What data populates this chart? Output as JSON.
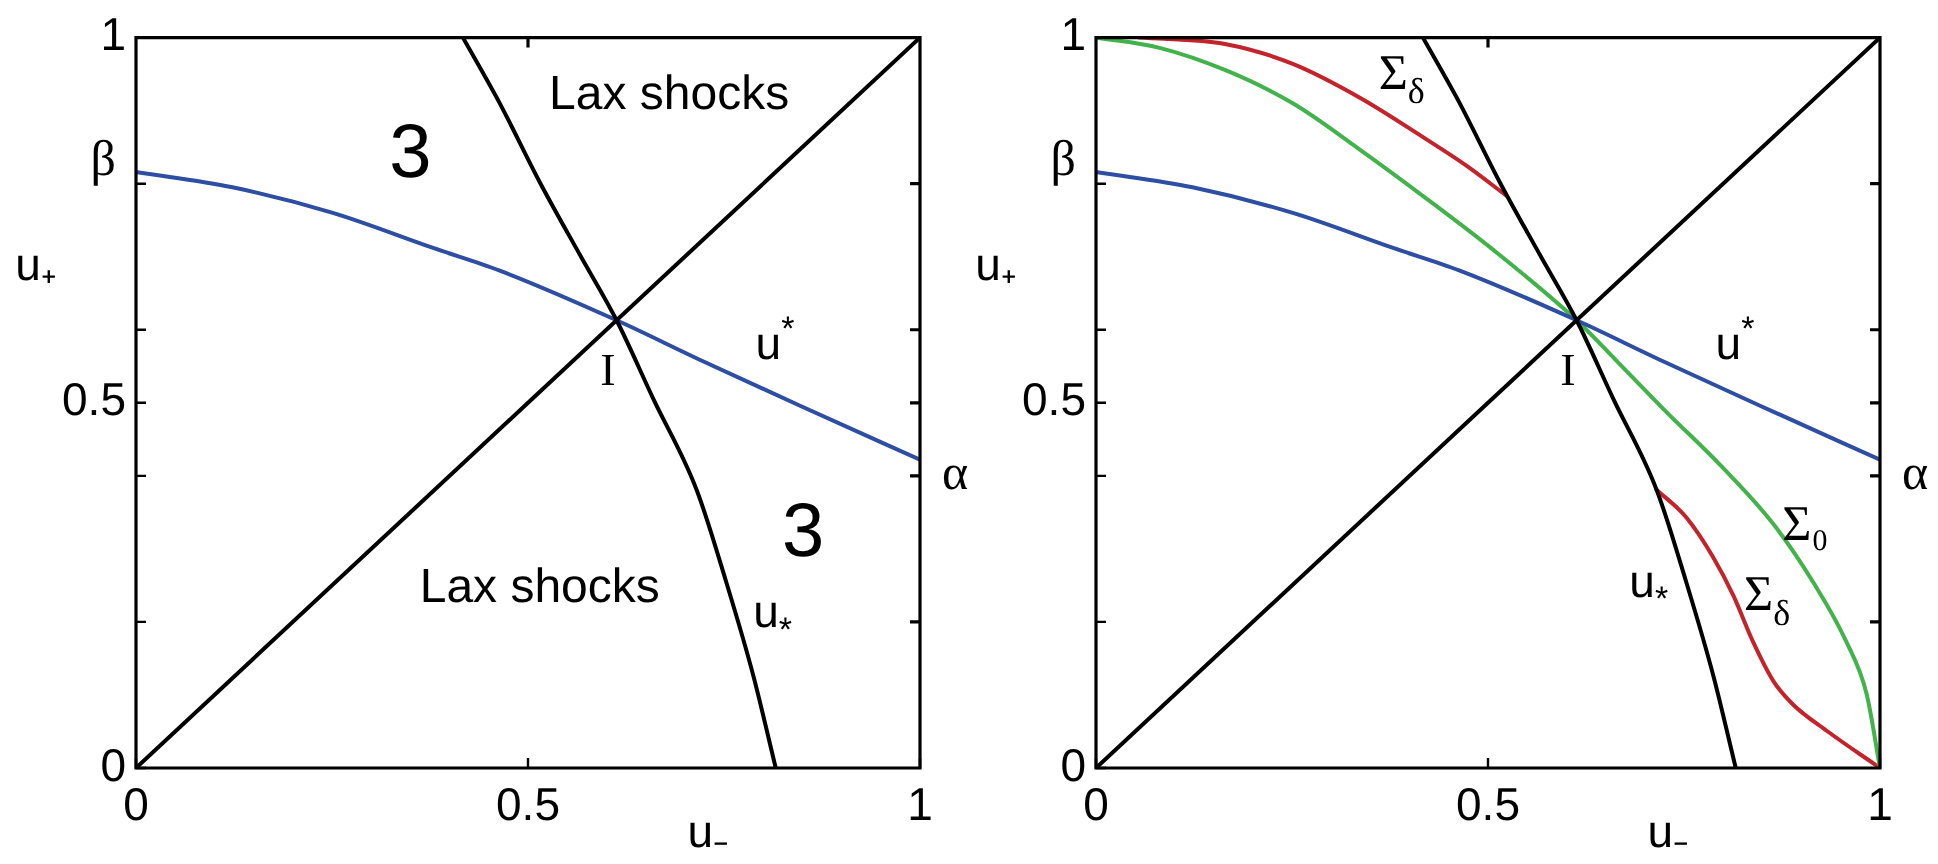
{
  "chart_data": [
    {
      "type": "line",
      "xlabel": "u₋",
      "ylabel": "u₊",
      "xlim": [
        0,
        1
      ],
      "ylim": [
        0,
        1
      ],
      "xticks": [
        0,
        0.5,
        1
      ],
      "yticks": [
        0,
        {
          "value": 0.2,
          "label": null
        },
        {
          "value": 0.4,
          "label": null
        },
        0.5,
        {
          "value": 0.6,
          "label": null
        },
        {
          "value": 0.8,
          "label": null
        },
        1
      ],
      "grid": false,
      "legend": false,
      "marker": "none",
      "series": [
        {
          "color": "#000000",
          "x": [
            0,
            1
          ],
          "values": [
            0,
            1
          ]
        },
        {
          "name": "u$_{*}$",
          "color": "#000000",
          "x": [
            0.417,
            0.464,
            0.515,
            0.566,
            0.613,
            0.66,
            0.715,
            0.753,
            0.787,
            0.816
          ],
          "values": [
            1,
            0.91,
            0.802,
            0.703,
            0.613,
            0.505,
            0.381,
            0.254,
            0.128,
            0
          ]
        },
        {
          "name": "u$^{*}$",
          "color": "#2d4ea3",
          "x": [
            0,
            0.123,
            0.251,
            0.379,
            0.464,
            0.613,
            0.719,
            0.847,
            1
          ],
          "values": [
            0.816,
            0.795,
            0.76,
            0.712,
            0.681,
            0.613,
            0.559,
            0.496,
            0.422
          ]
        }
      ],
      "annotations": [
        "3",
        "Lax shocks",
        "I",
        "3",
        "Lax shocks",
        "β",
        "α"
      ]
    },
    {
      "type": "line",
      "xlabel": "u₋",
      "ylabel": "u₊",
      "xlim": [
        0,
        1
      ],
      "ylim": [
        0,
        1
      ],
      "xticks": [
        0,
        0.5,
        1
      ],
      "yticks": [
        0,
        {
          "value": 0.2,
          "label": null
        },
        {
          "value": 0.4,
          "label": null
        },
        0.5,
        {
          "value": 0.6,
          "label": null
        },
        {
          "value": 0.8,
          "label": null
        },
        1
      ],
      "grid": false,
      "legend": false,
      "marker": "none",
      "series": [
        {
          "color": "#000000",
          "x": [
            0,
            1
          ],
          "values": [
            0,
            1
          ]
        },
        {
          "name": "u$_{*}$",
          "color": "#000000",
          "x": [
            0.417,
            0.464,
            0.515,
            0.566,
            0.613,
            0.66,
            0.715,
            0.753,
            0.787,
            0.816
          ],
          "values": [
            1,
            0.91,
            0.802,
            0.703,
            0.613,
            0.505,
            0.381,
            0.254,
            0.128,
            0
          ]
        },
        {
          "name": "u$^{*}$",
          "color": "#2d4ea3",
          "x": [
            0,
            0.123,
            0.251,
            0.379,
            0.464,
            0.613,
            0.719,
            0.847,
            1
          ],
          "values": [
            0.816,
            0.795,
            0.76,
            0.712,
            0.681,
            0.613,
            0.559,
            0.496,
            0.422
          ]
        },
        {
          "name": "Σ₀",
          "color": "#42b34a",
          "x": [
            0,
            0.081,
            0.166,
            0.251,
            0.336,
            0.421,
            0.506,
            0.613,
            0.668,
            0.728,
            0.796,
            0.864,
            0.915,
            0.957,
            0.983,
            1
          ],
          "values": [
            1,
            0.986,
            0.955,
            0.91,
            0.847,
            0.78,
            0.71,
            0.613,
            0.553,
            0.487,
            0.415,
            0.334,
            0.254,
            0.173,
            0.101,
            0
          ]
        },
        {
          "name": "Σ$_{δ}$",
          "color": "#c3232a",
          "x": [
            0.055,
            0.166,
            0.251,
            0.336,
            0.421,
            0.472,
            0.523,
            0.62,
            0.715,
            0.753,
            0.787,
            0.813,
            0.838,
            0.864,
            0.889,
            0.932,
            1
          ],
          "values": [
            1,
            0.991,
            0.964,
            0.918,
            0.861,
            0.825,
            0.784,
            null,
            0.381,
            0.343,
            0.289,
            0.236,
            0.173,
            0.119,
            0.087,
            0.051,
            0
          ]
        }
      ],
      "annotations": [
        "I",
        "β",
        "α"
      ]
    }
  ]
}
